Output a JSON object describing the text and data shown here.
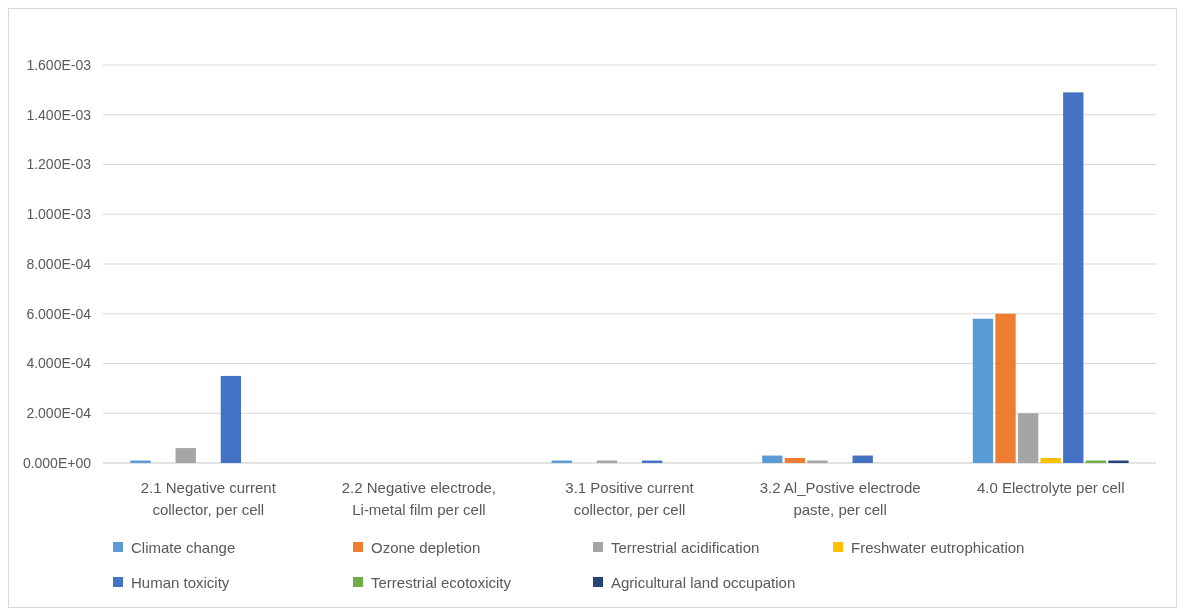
{
  "chart_data": {
    "type": "bar",
    "categories": [
      "2.1 Negative current collector, per cell",
      "2.2 Negative electrode, Li-metal film per cell",
      "3.1 Positive current collector, per cell",
      "3.2 Al_Postive electrode paste, per cell",
      "4.0 Electrolyte per cell"
    ],
    "series": [
      {
        "name": "Climate change",
        "color": "#5b9bd5",
        "values": [
          1e-05,
          0,
          1e-05,
          3e-05,
          0.00058
        ]
      },
      {
        "name": "Ozone depletion",
        "color": "#ed7d31",
        "values": [
          0,
          0,
          0,
          2e-05,
          0.0006
        ]
      },
      {
        "name": "Terrestrial acidification",
        "color": "#a5a5a5",
        "values": [
          6e-05,
          0,
          1e-05,
          1e-05,
          0.0002
        ]
      },
      {
        "name": "Freshwater eutrophication",
        "color": "#ffc000",
        "values": [
          0,
          0,
          0,
          0,
          2e-05
        ]
      },
      {
        "name": "Human toxicity",
        "color": "#4472c4",
        "values": [
          0.00035,
          0,
          1e-05,
          3e-05,
          0.00149
        ]
      },
      {
        "name": "Terrestrial ecotoxicity",
        "color": "#70ad47",
        "values": [
          0,
          0,
          0,
          0,
          1e-05
        ]
      },
      {
        "name": "Agricultural land occupation",
        "color": "#264478",
        "values": [
          0,
          0,
          0,
          0,
          1e-05
        ]
      }
    ],
    "ylim": [
      0,
      0.0016
    ],
    "yticks": [
      {
        "value": 0,
        "label": "0.000E+00"
      },
      {
        "value": 0.0002,
        "label": "2.000E-04"
      },
      {
        "value": 0.0004,
        "label": "4.000E-04"
      },
      {
        "value": 0.0006,
        "label": "6.000E-04"
      },
      {
        "value": 0.0008,
        "label": "8.000E-04"
      },
      {
        "value": 0.001,
        "label": "1.000E-03"
      },
      {
        "value": 0.0012,
        "label": "1.200E-03"
      },
      {
        "value": 0.0014,
        "label": "1.400E-03"
      },
      {
        "value": 0.0016,
        "label": "1.600E-03"
      }
    ],
    "grid": "y",
    "legend": "bottom"
  }
}
